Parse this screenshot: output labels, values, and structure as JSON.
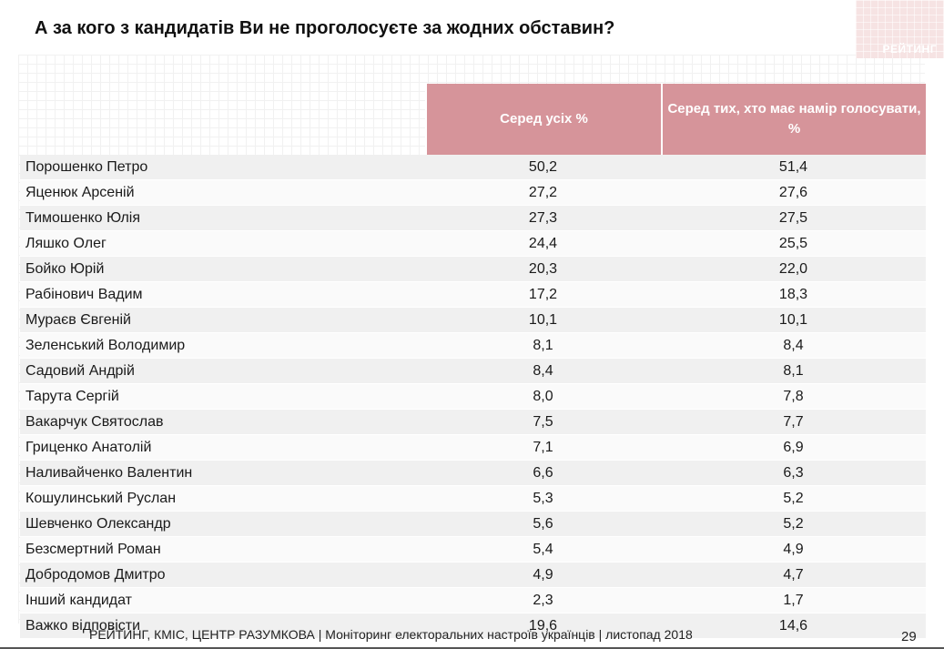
{
  "title": "А за кого з кандидатів Ви не проголосуєте за жодних обставин?",
  "logo": {
    "text": "РЕЙТИНГ"
  },
  "accent_color": "#d6949a",
  "chart_data": {
    "type": "table",
    "columns": [
      "Серед усіх %",
      "Серед тих, хто має намір голосувати, %"
    ],
    "rows": [
      {
        "name": "Порошенко Петро",
        "all": "50,2",
        "voters": "51,4"
      },
      {
        "name": "Яценюк Арсеній",
        "all": "27,2",
        "voters": "27,6"
      },
      {
        "name": "Тимошенко Юлія",
        "all": "27,3",
        "voters": "27,5"
      },
      {
        "name": "Ляшко Олег",
        "all": "24,4",
        "voters": "25,5"
      },
      {
        "name": "Бойко Юрій",
        "all": "20,3",
        "voters": "22,0"
      },
      {
        "name": "Рабінович Вадим",
        "all": "17,2",
        "voters": "18,3"
      },
      {
        "name": "Мураєв Євгеній",
        "all": "10,1",
        "voters": "10,1"
      },
      {
        "name": "Зеленський Володимир",
        "all": "8,1",
        "voters": "8,4"
      },
      {
        "name": "Садовий Андрій",
        "all": "8,4",
        "voters": "8,1"
      },
      {
        "name": "Тарута Сергій",
        "all": "8,0",
        "voters": "7,8"
      },
      {
        "name": "Вакарчук Святослав",
        "all": "7,5",
        "voters": "7,7"
      },
      {
        "name": "Гриценко Анатолій",
        "all": "7,1",
        "voters": "6,9"
      },
      {
        "name": "Наливайченко Валентин",
        "all": "6,6",
        "voters": "6,3"
      },
      {
        "name": "Кошулинський Руслан",
        "all": "5,3",
        "voters": "5,2"
      },
      {
        "name": "Шевченко Олександр",
        "all": "5,6",
        "voters": "5,2"
      },
      {
        "name": "Безсмертний Роман",
        "all": "5,4",
        "voters": "4,9"
      },
      {
        "name": "Добродомов Дмитро",
        "all": "4,9",
        "voters": "4,7"
      },
      {
        "name": "Інший кандидат",
        "all": "2,3",
        "voters": "1,7"
      },
      {
        "name": "Важко відповісти",
        "all": "19,6",
        "voters": "14,6"
      }
    ]
  },
  "footer": {
    "text": "РЕЙТИНГ, КМІС, ЦЕНТР РАЗУМКОВА |  Моніторинг електоральних настроїв українців | листопад 2018",
    "page_number": "29"
  }
}
